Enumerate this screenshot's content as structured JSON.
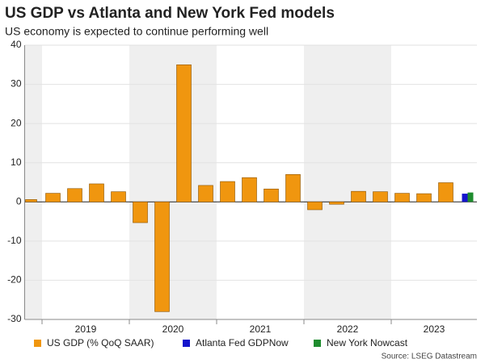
{
  "chart_data": {
    "type": "bar",
    "title": "US GDP vs Atlanta and New York Fed models",
    "subtitle": "US economy is expected to continue performing well",
    "source": "Source: LSEG Datastream",
    "categories": [
      null,
      null,
      null,
      null,
      null,
      null,
      null,
      null,
      null,
      null,
      null,
      null,
      null,
      null,
      null,
      null,
      null,
      null,
      null,
      null,
      null
    ],
    "year_labels": [
      "2019",
      "2020",
      "2021",
      "2022",
      "2023"
    ],
    "series": [
      {
        "name": "US GDP (% QoQ SAAR)",
        "color": "#f0960f",
        "values": [
          0.6,
          2.2,
          3.4,
          4.6,
          2.6,
          -5.3,
          -28,
          35,
          4.2,
          5.2,
          6.2,
          3.3,
          7.0,
          -2.0,
          -0.6,
          2.7,
          2.6,
          2.2,
          2.1,
          4.9,
          null
        ]
      },
      {
        "name": "Atlanta Fed GDPNow",
        "color": "#1414cc",
        "values": [
          null,
          null,
          null,
          null,
          null,
          null,
          null,
          null,
          null,
          null,
          null,
          null,
          null,
          null,
          null,
          null,
          null,
          null,
          null,
          null,
          2.1
        ]
      },
      {
        "name": "New York Nowcast",
        "color": "#1e8c2e",
        "values": [
          null,
          null,
          null,
          null,
          null,
          null,
          null,
          null,
          null,
          null,
          null,
          null,
          null,
          null,
          null,
          null,
          null,
          null,
          null,
          null,
          2.4
        ]
      }
    ],
    "ylim": [
      -30,
      40
    ],
    "yticks": [
      -30,
      -20,
      -10,
      0,
      10,
      20,
      30,
      40
    ],
    "grid": true
  }
}
